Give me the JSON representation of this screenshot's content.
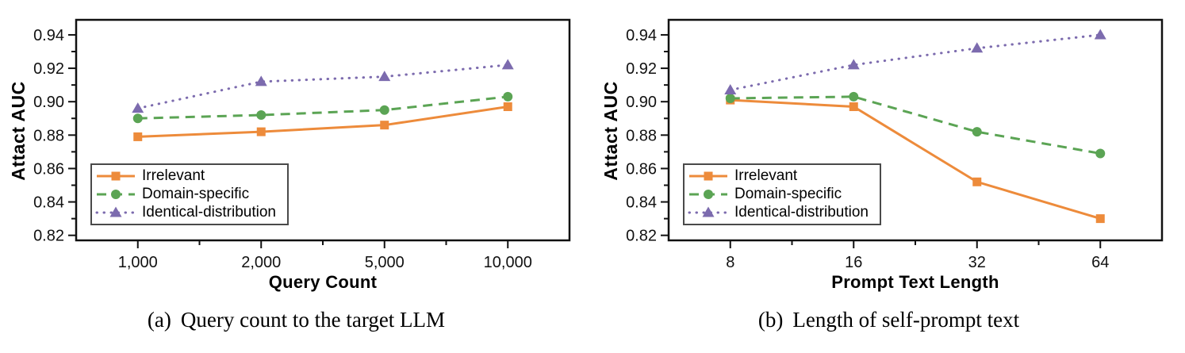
{
  "chart_data": [
    {
      "type": "line",
      "panel_label": "(a)",
      "caption": "Query count to the target LLM",
      "xlabel": "Query Count",
      "ylabel": "Attact AUC",
      "categories": [
        "1,000",
        "2,000",
        "5,000",
        "10,000"
      ],
      "y_ticks": [
        0.82,
        0.84,
        0.86,
        0.88,
        0.9,
        0.92,
        0.94
      ],
      "y_minor_ticks": [
        0.83,
        0.85,
        0.87,
        0.89,
        0.91,
        0.93
      ],
      "ylim": [
        0.817,
        0.949
      ],
      "grid": false,
      "legend_position": "lower-left",
      "series": [
        {
          "name": "Irrelevant",
          "color": "#ED8B3B",
          "linestyle": "solid",
          "marker": "square",
          "values": [
            0.879,
            0.882,
            0.886,
            0.897
          ]
        },
        {
          "name": "Domain-specific",
          "color": "#5BA454",
          "linestyle": "dashed",
          "marker": "circle",
          "values": [
            0.89,
            0.892,
            0.895,
            0.903
          ]
        },
        {
          "name": "Identical-distribution",
          "color": "#7C6BAE",
          "linestyle": "dotted",
          "marker": "triangle",
          "values": [
            0.896,
            0.912,
            0.915,
            0.922
          ]
        }
      ]
    },
    {
      "type": "line",
      "panel_label": "(b)",
      "caption": "Length of self-prompt text",
      "xlabel": "Prompt Text Length",
      "ylabel": "Attact AUC",
      "categories": [
        "8",
        "16",
        "32",
        "64"
      ],
      "y_ticks": [
        0.82,
        0.84,
        0.86,
        0.88,
        0.9,
        0.92,
        0.94
      ],
      "y_minor_ticks": [
        0.83,
        0.85,
        0.87,
        0.89,
        0.91,
        0.93
      ],
      "ylim": [
        0.817,
        0.949
      ],
      "grid": false,
      "legend_position": "lower-left",
      "series": [
        {
          "name": "Irrelevant",
          "color": "#ED8B3B",
          "linestyle": "solid",
          "marker": "square",
          "values": [
            0.901,
            0.897,
            0.852,
            0.83
          ]
        },
        {
          "name": "Domain-specific",
          "color": "#5BA454",
          "linestyle": "dashed",
          "marker": "circle",
          "values": [
            0.902,
            0.903,
            0.882,
            0.869
          ]
        },
        {
          "name": "Identical-distribution",
          "color": "#7C6BAE",
          "linestyle": "dotted",
          "marker": "triangle",
          "values": [
            0.907,
            0.922,
            0.932,
            0.94
          ]
        }
      ]
    }
  ]
}
